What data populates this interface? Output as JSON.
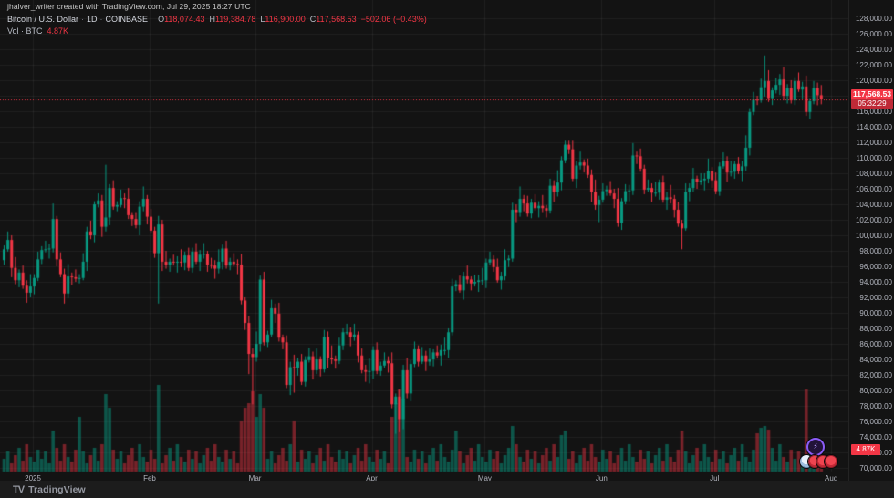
{
  "watermark": "jhalver_writer created with TradingView.com, Jul 29, 2025 18:27 UTC",
  "legend": {
    "symbol": "Bitcoin / U.S. Dollar",
    "interval": "1D",
    "exchange": "COINBASE",
    "sep": "·",
    "ohlc": {
      "o_label": "O",
      "o": "118,074.43",
      "h_label": "H",
      "h": "119,384.78",
      "l_label": "L",
      "l": "116,900.00",
      "c_label": "C",
      "c": "117,568.53",
      "change": "−502.06 (−0.43%)"
    },
    "volume_label": "Vol · BTC",
    "volume_value": "4.87K"
  },
  "price_label": {
    "price": "117,568.53",
    "countdown": "05:32:29"
  },
  "volume_axis_label": "4.87K",
  "footer": {
    "logo_mark": "TV",
    "logo_text": "TradingView"
  },
  "colors": {
    "bg": "#131313",
    "up": "#089981",
    "down": "#f23645",
    "vol_up": "rgba(8,153,129,0.50)",
    "vol_down": "rgba(242,54,69,0.45)",
    "grid": "rgba(255,255,255,0.055)",
    "axis_text": "#b2b5be",
    "badge": "#f23645"
  },
  "chart_data": {
    "type": "candlestick",
    "title": "Bitcoin / U.S. Dollar · 1D · COINBASE",
    "interval": "1D",
    "start_date": "2024-12-24",
    "scale_factor": 1000,
    "grid": true,
    "y_axis": {
      "min": 70000,
      "max": 128000,
      "step": 2000,
      "format": "thousands_with_cents"
    },
    "x_ticks": [
      {
        "i": 8,
        "label": "2025"
      },
      {
        "i": 39,
        "label": "Feb"
      },
      {
        "i": 67,
        "label": "Mar"
      },
      {
        "i": 98,
        "label": "Apr"
      },
      {
        "i": 128,
        "label": "May"
      },
      {
        "i": 159,
        "label": "Jun"
      },
      {
        "i": 189,
        "label": "Jul"
      },
      {
        "i": 220,
        "label": "Aug"
      }
    ],
    "current_price": 117568.53,
    "countdown": "05:32:29",
    "last_candle": {
      "o": 118074.43,
      "h": 119384.78,
      "l": 116900.0,
      "c": 117568.53,
      "change": -502.06,
      "change_pct": -0.43
    },
    "last_volume": 4.87,
    "first_open": 96.8,
    "closes": [
      98.2,
      99.4,
      95.8,
      94.2,
      95.2,
      93.5,
      92.6,
      93.4,
      94.5,
      96.9,
      98.1,
      98.2,
      98.3,
      102.1,
      96.9,
      95.0,
      92.5,
      94.7,
      94.6,
      94.4,
      94.5,
      96.6,
      100.5,
      100.0,
      104.0,
      104.5,
      101.1,
      102.3,
      106.1,
      103.7,
      103.9,
      104.8,
      104.7,
      102.6,
      102.1,
      101.3,
      103.7,
      104.7,
      102.4,
      100.6,
      97.7,
      101.4,
      96.6,
      96.2,
      96.6,
      96.5,
      96.6,
      96.5,
      97.4,
      95.8,
      97.9,
      96.6,
      97.5,
      97.6,
      96.2,
      96.1,
      95.7,
      96.6,
      98.3,
      96.1,
      96.6,
      96.3,
      96.2,
      91.6,
      88.7,
      84.7,
      84.3,
      86.0,
      94.3,
      86.2,
      87.2,
      90.6,
      89.9,
      86.8,
      86.2,
      80.7,
      83.0,
      82.9,
      83.7,
      81.1,
      83.9,
      84.4,
      82.6,
      84.0,
      82.7,
      86.9,
      84.2,
      84.0,
      83.8,
      85.8,
      87.5,
      87.5,
      86.9,
      87.2,
      84.5,
      82.6,
      82.4,
      82.5,
      85.2,
      82.5,
      83.2,
      83.8,
      83.5,
      78.2,
      79.2,
      76.3,
      82.6,
      79.6,
      83.4,
      85.3,
      83.7,
      84.5,
      83.7,
      84.0,
      84.9,
      84.5,
      85.2,
      85.2,
      87.5,
      93.4,
      93.7,
      92.9,
      94.7,
      94.3,
      93.8,
      94.0,
      94.2,
      94.2,
      96.5,
      96.9,
      95.9,
      94.2,
      94.7,
      96.8,
      97.0,
      103.3,
      103.0,
      104.7,
      104.1,
      102.8,
      104.2,
      103.5,
      103.8,
      103.5,
      103.2,
      106.4,
      105.6,
      106.8,
      109.7,
      111.7,
      111.1,
      107.3,
      109.0,
      109.4,
      109.0,
      107.8,
      105.6,
      103.9,
      104.6,
      105.7,
      105.9,
      105.4,
      104.7,
      101.6,
      104.4,
      105.7,
      105.8,
      110.3,
      110.2,
      108.6,
      105.9,
      106.1,
      105.5,
      105.5,
      106.8,
      104.6,
      104.9,
      104.7,
      103.3,
      101.5,
      100.9,
      105.6,
      106.1,
      107.3,
      106.9,
      107.1,
      107.3,
      108.3,
      107.1,
      105.7,
      108.9,
      109.6,
      108.1,
      108.2,
      109.2,
      108.3,
      108.9,
      111.3,
      115.9,
      117.5,
      117.4,
      119.1,
      119.9,
      117.7,
      118.7,
      119.4,
      120.1,
      118.0,
      119.0,
      117.4,
      119.9,
      118.8,
      119.2,
      115.9,
      117.3,
      119.0,
      118.07,
      117.568
    ],
    "hi_off": [
      0.5,
      1.1,
      0.6,
      1.4,
      0.4,
      0.9,
      0.7,
      1.6,
      0.5,
      1.0,
      0.5,
      1.1,
      0.6,
      2.0,
      0.4,
      0.9,
      0.7,
      1.6,
      0.5,
      1.0,
      0.5,
      1.1,
      0.6,
      1.4,
      0.4,
      0.9,
      0.7,
      6.8,
      0.5,
      1.0,
      0.5,
      1.1,
      0.6,
      1.4,
      0.4,
      0.9,
      0.7,
      1.6,
      0.5,
      1.0,
      0.5,
      1.1,
      0.6,
      1.4,
      0.4,
      0.9,
      0.7,
      1.6,
      0.5,
      1.0,
      0.5,
      1.1,
      0.6,
      1.4,
      0.4,
      0.9,
      0.7,
      1.6,
      0.5,
      1.0,
      0.5,
      1.1,
      0.6,
      1.4,
      0.4,
      0.9,
      0.7,
      1.6,
      0.5,
      1.0,
      0.5,
      1.1,
      0.6,
      1.4,
      0.4,
      0.9,
      0.7,
      1.6,
      0.5,
      1.0,
      0.5,
      1.1,
      0.6,
      1.4,
      0.4,
      0.9,
      0.7,
      1.6,
      0.5,
      1.0,
      0.5,
      1.1,
      0.6,
      1.4,
      0.4,
      0.9,
      0.7,
      1.6,
      0.5,
      1.0,
      0.5,
      1.1,
      0.6,
      1.4,
      0.4,
      0.9,
      0.7,
      1.6,
      0.5,
      1.0,
      0.5,
      1.1,
      0.6,
      1.4,
      0.4,
      0.9,
      0.7,
      1.6,
      0.5,
      1.0,
      0.5,
      1.1,
      0.6,
      1.4,
      0.4,
      0.9,
      0.7,
      1.6,
      0.5,
      1.0,
      0.5,
      1.1,
      0.6,
      1.4,
      0.4,
      0.9,
      0.7,
      1.6,
      0.5,
      1.0,
      0.5,
      1.1,
      0.6,
      1.4,
      0.4,
      0.9,
      0.7,
      1.6,
      0.5,
      0.5,
      0.5,
      1.1,
      0.6,
      1.4,
      0.4,
      0.9,
      0.7,
      1.6,
      0.5,
      1.0,
      0.5,
      1.1,
      0.6,
      1.4,
      0.4,
      0.9,
      0.7,
      1.6,
      0.5,
      1.0,
      0.5,
      1.1,
      0.6,
      1.4,
      0.4,
      0.9,
      0.7,
      1.6,
      0.5,
      1.0,
      0.5,
      1.1,
      0.6,
      1.4,
      0.4,
      0.9,
      0.7,
      1.6,
      0.5,
      1.0,
      0.5,
      1.1,
      0.6,
      1.4,
      0.4,
      0.9,
      0.7,
      1.6,
      0.5,
      1.0,
      0.5,
      1.1,
      3.3,
      1.4,
      0.4,
      0.9,
      0.7,
      1.6,
      0.5,
      1.0,
      0.5,
      1.1,
      0.6,
      1.4,
      0.4,
      0.9,
      0.7,
      1.31
    ],
    "lo_off": [
      0.6,
      0.3,
      1.2,
      0.5,
      0.9,
      0.4,
      1.3,
      0.6,
      1.0,
      0.4,
      0.6,
      0.3,
      1.2,
      0.5,
      0.9,
      0.4,
      1.3,
      0.6,
      1.0,
      0.4,
      0.6,
      0.3,
      1.2,
      0.5,
      0.9,
      0.4,
      1.3,
      0.6,
      1.0,
      0.4,
      0.6,
      0.3,
      1.2,
      0.5,
      0.9,
      0.4,
      1.3,
      0.6,
      1.0,
      0.4,
      0.6,
      6.5,
      1.2,
      0.5,
      0.9,
      0.4,
      1.3,
      0.6,
      1.0,
      0.4,
      0.6,
      0.3,
      1.2,
      0.5,
      0.9,
      0.4,
      1.3,
      0.6,
      1.0,
      0.4,
      0.6,
      0.3,
      1.2,
      0.5,
      0.9,
      2.6,
      6.1,
      0.6,
      1.0,
      0.4,
      0.6,
      0.3,
      1.2,
      0.5,
      0.9,
      0.4,
      1.3,
      3.2,
      1.0,
      0.4,
      0.6,
      0.3,
      1.2,
      0.5,
      0.9,
      0.4,
      1.3,
      0.6,
      1.0,
      0.4,
      0.6,
      0.3,
      1.2,
      0.5,
      0.9,
      0.4,
      1.3,
      1.5,
      1.0,
      0.4,
      0.6,
      0.3,
      1.2,
      0.5,
      3.8,
      1.7,
      1.3,
      0.6,
      1.0,
      0.4,
      0.6,
      0.3,
      1.2,
      0.5,
      0.9,
      0.4,
      1.3,
      0.6,
      1.0,
      0.4,
      0.6,
      0.3,
      1.2,
      0.5,
      0.9,
      0.4,
      1.3,
      0.6,
      1.0,
      0.4,
      0.6,
      0.3,
      1.2,
      0.5,
      0.9,
      0.4,
      1.3,
      0.6,
      1.0,
      0.4,
      0.6,
      0.3,
      1.2,
      0.5,
      0.9,
      0.4,
      1.3,
      0.6,
      1.0,
      0.4,
      0.6,
      0.3,
      1.2,
      0.5,
      0.9,
      0.4,
      1.3,
      0.6,
      2.2,
      0.4,
      0.6,
      0.3,
      1.2,
      0.5,
      0.9,
      0.4,
      1.3,
      0.6,
      1.0,
      0.4,
      0.6,
      0.3,
      1.2,
      0.5,
      0.9,
      0.4,
      1.3,
      0.6,
      1.0,
      0.4,
      2.7,
      0.3,
      1.2,
      0.5,
      0.9,
      0.4,
      1.3,
      0.6,
      1.0,
      0.4,
      0.6,
      0.3,
      1.2,
      0.5,
      0.9,
      0.4,
      1.3,
      0.6,
      1.0,
      0.4,
      0.6,
      0.3,
      1.2,
      0.5,
      0.9,
      0.4,
      1.3,
      0.6,
      1.0,
      0.4,
      0.6,
      0.3,
      1.2,
      0.5,
      0.9,
      0.4,
      1.3,
      0.67
    ],
    "volumes": [
      14,
      22,
      9,
      18,
      26,
      12,
      30,
      16,
      11,
      24,
      14,
      22,
      9,
      45,
      26,
      12,
      30,
      16,
      11,
      24,
      60,
      22,
      9,
      18,
      26,
      12,
      30,
      85,
      70,
      24,
      14,
      22,
      9,
      18,
      26,
      12,
      30,
      16,
      11,
      24,
      14,
      95,
      9,
      18,
      26,
      12,
      30,
      16,
      11,
      24,
      14,
      22,
      9,
      18,
      26,
      12,
      30,
      16,
      11,
      24,
      14,
      22,
      9,
      55,
      70,
      75,
      88,
      60,
      85,
      70,
      14,
      22,
      9,
      18,
      26,
      12,
      30,
      55,
      11,
      24,
      14,
      22,
      9,
      18,
      26,
      12,
      30,
      16,
      11,
      24,
      14,
      22,
      9,
      18,
      26,
      12,
      30,
      16,
      11,
      24,
      14,
      22,
      9,
      60,
      75,
      90,
      80,
      16,
      11,
      24,
      14,
      22,
      9,
      18,
      26,
      12,
      30,
      16,
      11,
      24,
      45,
      22,
      9,
      18,
      26,
      12,
      30,
      16,
      11,
      24,
      14,
      22,
      9,
      18,
      26,
      50,
      30,
      16,
      11,
      24,
      14,
      22,
      9,
      18,
      26,
      12,
      30,
      16,
      40,
      45,
      14,
      22,
      9,
      18,
      26,
      12,
      30,
      16,
      11,
      24,
      14,
      22,
      9,
      18,
      26,
      12,
      30,
      16,
      11,
      24,
      14,
      22,
      9,
      18,
      26,
      12,
      30,
      16,
      11,
      24,
      45,
      22,
      9,
      18,
      26,
      12,
      30,
      16,
      11,
      24,
      14,
      22,
      9,
      18,
      26,
      12,
      30,
      16,
      11,
      24,
      42,
      48,
      50,
      46,
      26,
      12,
      30,
      16,
      11,
      24,
      14,
      22,
      9,
      90,
      26,
      12,
      25,
      4.87
    ],
    "volume_max": 100
  }
}
